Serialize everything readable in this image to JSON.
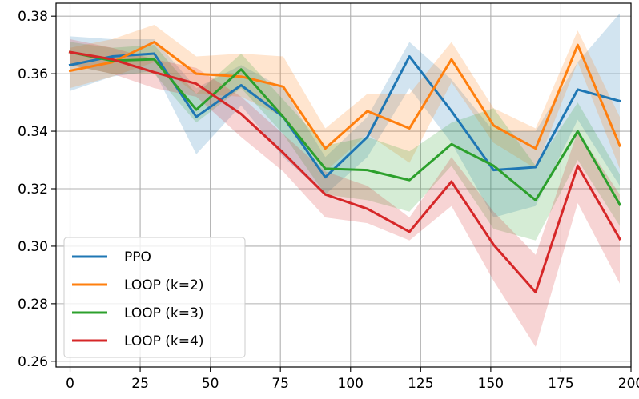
{
  "chart_data": {
    "type": "line",
    "title": "",
    "xlabel": "",
    "ylabel": "",
    "xlim": [
      -5,
      200
    ],
    "ylim": [
      0.258,
      0.3845
    ],
    "grid": true,
    "legend_position": "lower-left",
    "x_ticks": [
      "0",
      "25",
      "50",
      "75",
      "100",
      "125",
      "150",
      "175",
      "200"
    ],
    "y_ticks": [
      "0.26",
      "0.28",
      "0.30",
      "0.32",
      "0.34",
      "0.36",
      "0.38"
    ],
    "x": [
      0,
      15,
      30,
      45,
      61,
      76,
      91,
      106,
      121,
      136,
      151,
      166,
      181,
      196
    ],
    "series": [
      {
        "name": "PPO",
        "color": "#1f77b4",
        "values": [
          0.363,
          0.366,
          0.367,
          0.345,
          0.356,
          0.345,
          0.324,
          0.338,
          0.366,
          0.347,
          0.3265,
          0.3275,
          0.3545,
          0.3505
        ],
        "band": [
          [
            0.354,
            0.373
          ],
          [
            0.359,
            0.372
          ],
          [
            0.361,
            0.372
          ],
          [
            0.332,
            0.355
          ],
          [
            0.349,
            0.363
          ],
          [
            0.331,
            0.355
          ],
          [
            0.318,
            0.331
          ],
          [
            0.331,
            0.345
          ],
          [
            0.355,
            0.371
          ],
          [
            0.336,
            0.358
          ],
          [
            0.31,
            0.34
          ],
          [
            0.314,
            0.34
          ],
          [
            0.344,
            0.364
          ],
          [
            0.321,
            0.381
          ]
        ]
      },
      {
        "name": "LOOP (k=2)",
        "color": "#ff7f0e",
        "values": [
          0.361,
          0.364,
          0.371,
          0.36,
          0.359,
          0.3555,
          0.334,
          0.347,
          0.341,
          0.365,
          0.342,
          0.334,
          0.37,
          0.335
        ],
        "band": [
          [
            0.355,
            0.369
          ],
          [
            0.359,
            0.372
          ],
          [
            0.364,
            0.377
          ],
          [
            0.353,
            0.366
          ],
          [
            0.352,
            0.367
          ],
          [
            0.345,
            0.366
          ],
          [
            0.326,
            0.341
          ],
          [
            0.339,
            0.353
          ],
          [
            0.329,
            0.353
          ],
          [
            0.357,
            0.371
          ],
          [
            0.336,
            0.348
          ],
          [
            0.327,
            0.341
          ],
          [
            0.364,
            0.375
          ],
          [
            0.327,
            0.345
          ]
        ]
      },
      {
        "name": "LOOP (k=3)",
        "color": "#2ca02c",
        "values": [
          0.3675,
          0.3645,
          0.365,
          0.3475,
          0.3615,
          0.345,
          0.327,
          0.3265,
          0.323,
          0.3355,
          0.328,
          0.316,
          0.34,
          0.3145
        ],
        "band": [
          [
            0.363,
            0.371
          ],
          [
            0.36,
            0.369
          ],
          [
            0.36,
            0.37
          ],
          [
            0.343,
            0.353
          ],
          [
            0.355,
            0.367
          ],
          [
            0.339,
            0.351
          ],
          [
            0.318,
            0.335
          ],
          [
            0.316,
            0.338
          ],
          [
            0.312,
            0.333
          ],
          [
            0.328,
            0.343
          ],
          [
            0.306,
            0.348
          ],
          [
            0.302,
            0.328
          ],
          [
            0.33,
            0.35
          ],
          [
            0.307,
            0.325
          ]
        ]
      },
      {
        "name": "LOOP (k=4)",
        "color": "#d62728",
        "values": [
          0.3675,
          0.365,
          0.3605,
          0.3565,
          0.346,
          0.3325,
          0.318,
          0.313,
          0.305,
          0.3225,
          0.3005,
          0.284,
          0.328,
          0.3025
        ],
        "band": [
          [
            0.363,
            0.372
          ],
          [
            0.36,
            0.369
          ],
          [
            0.355,
            0.365
          ],
          [
            0.352,
            0.362
          ],
          [
            0.338,
            0.352
          ],
          [
            0.326,
            0.339
          ],
          [
            0.31,
            0.326
          ],
          [
            0.308,
            0.321
          ],
          [
            0.302,
            0.31
          ],
          [
            0.314,
            0.331
          ],
          [
            0.288,
            0.312
          ],
          [
            0.265,
            0.297
          ],
          [
            0.315,
            0.34
          ],
          [
            0.287,
            0.318
          ]
        ]
      }
    ]
  }
}
